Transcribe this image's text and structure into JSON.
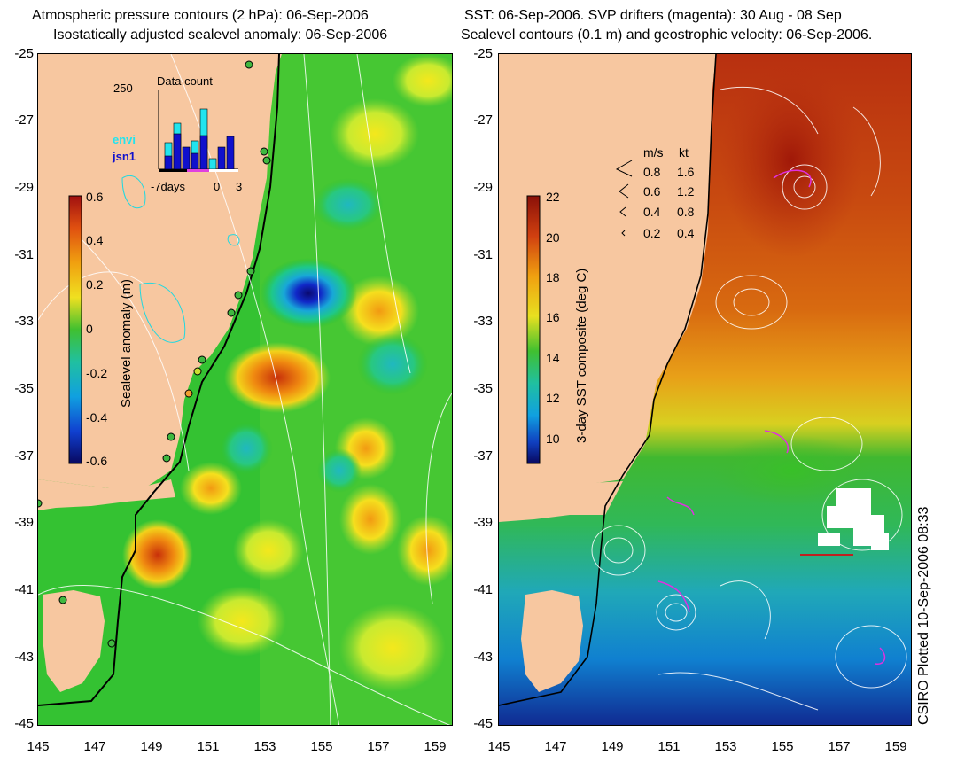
{
  "left_panel": {
    "title_line1": "Atmospheric pressure contours (2 hPa): 06-Sep-2006",
    "title_line2": "Isostatically adjusted sealevel anomaly: 06-Sep-2006",
    "colorbar_label": "Sealevel anomaly (m)",
    "colorbar_ticks": [
      "0.6",
      "0.4",
      "0.2",
      "0",
      "-0.2",
      "-0.4",
      "-0.6"
    ],
    "inset": {
      "title": "Data count",
      "y_max_label": "250",
      "series": [
        "envi",
        "jsn1"
      ],
      "x_labels": [
        "-7days",
        "0",
        "3"
      ],
      "colors": {
        "envi": "#22e4ee",
        "jsn1": "#1010cc"
      }
    }
  },
  "right_panel": {
    "title_line1": "SST: 06-Sep-2006. SVP drifters (magenta): 30 Aug - 08 Sep",
    "title_line2": "Sealevel contours (0.1 m) and geostrophic velocity: 06-Sep-2006.",
    "colorbar_label": "3-day SST composite (deg C)",
    "colorbar_ticks": [
      "22",
      "20",
      "18",
      "16",
      "14",
      "12",
      "10"
    ],
    "velocity_legend": {
      "header_ms": "m/s",
      "header_kt": "kt",
      "rows": [
        {
          "ms": "0.8",
          "kt": "1.6"
        },
        {
          "ms": "0.6",
          "kt": "1.2"
        },
        {
          "ms": "0.4",
          "kt": "0.8"
        },
        {
          "ms": "0.2",
          "kt": "0.4"
        }
      ]
    }
  },
  "axes": {
    "y_ticks": [
      "-25",
      "-27",
      "-29",
      "-31",
      "-33",
      "-35",
      "-37",
      "-39",
      "-41",
      "-43",
      "-45"
    ],
    "x_ticks": [
      "145",
      "147",
      "149",
      "151",
      "153",
      "155",
      "157",
      "159"
    ]
  },
  "credit": "CSIRO Plotted 10-Sep-2006 08:33",
  "colors": {
    "land": "#f7c7a0",
    "background_sla": "#2ec030",
    "coast": "#000000"
  }
}
